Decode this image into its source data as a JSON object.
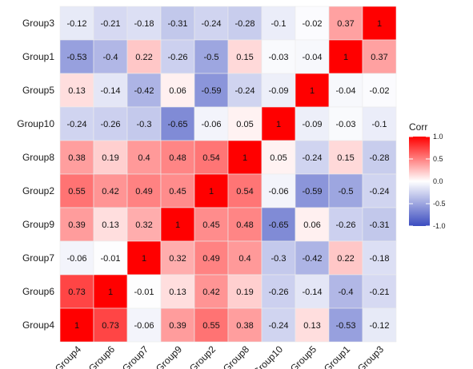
{
  "chart_data": {
    "type": "heatmap",
    "title": "",
    "xlabel": "",
    "ylabel": "",
    "x_categories": [
      "Group4",
      "Group6",
      "Group7",
      "Group9",
      "Group2",
      "Group8",
      "Group10",
      "Group5",
      "Group1",
      "Group3"
    ],
    "y_categories": [
      "Group3",
      "Group1",
      "Group5",
      "Group10",
      "Group8",
      "Group2",
      "Group9",
      "Group7",
      "Group6",
      "Group4"
    ],
    "values": [
      [
        -0.12,
        -0.21,
        -0.18,
        -0.31,
        -0.24,
        -0.28,
        -0.1,
        -0.02,
        0.37,
        1
      ],
      [
        -0.53,
        -0.4,
        0.22,
        -0.26,
        -0.5,
        0.15,
        -0.03,
        -0.04,
        1,
        0.37
      ],
      [
        0.13,
        -0.14,
        -0.42,
        0.06,
        -0.59,
        -0.24,
        -0.09,
        1,
        -0.04,
        -0.02
      ],
      [
        -0.24,
        -0.26,
        -0.3,
        -0.65,
        -0.06,
        0.05,
        1,
        -0.09,
        -0.03,
        -0.1
      ],
      [
        0.38,
        0.19,
        0.4,
        0.48,
        0.54,
        1,
        0.05,
        -0.24,
        0.15,
        -0.28
      ],
      [
        0.55,
        0.42,
        0.49,
        0.45,
        1,
        0.54,
        -0.06,
        -0.59,
        -0.5,
        -0.24
      ],
      [
        0.39,
        0.13,
        0.32,
        1,
        0.45,
        0.48,
        -0.65,
        0.06,
        -0.26,
        -0.31
      ],
      [
        -0.06,
        -0.01,
        1,
        0.32,
        0.49,
        0.4,
        -0.3,
        -0.42,
        0.22,
        -0.18
      ],
      [
        0.73,
        1,
        -0.01,
        0.13,
        0.42,
        0.19,
        -0.26,
        -0.14,
        -0.4,
        -0.21
      ],
      [
        1,
        0.73,
        -0.06,
        0.39,
        0.55,
        0.38,
        -0.24,
        0.13,
        -0.53,
        -0.12
      ]
    ],
    "legend": {
      "title": "Corr",
      "ticks": [
        1.0,
        0.5,
        0.0,
        -0.5,
        -1.0
      ],
      "tick_labels": [
        "1.0",
        "0.5",
        "0.0",
        "-0.5",
        "-1.0"
      ],
      "position": "right"
    },
    "value_range": [
      -1,
      1
    ],
    "colors": {
      "low": "#3b4cc0",
      "mid": "#ffffff",
      "high": "#ff0000",
      "grid": "#ebebeb"
    },
    "grid": false
  }
}
